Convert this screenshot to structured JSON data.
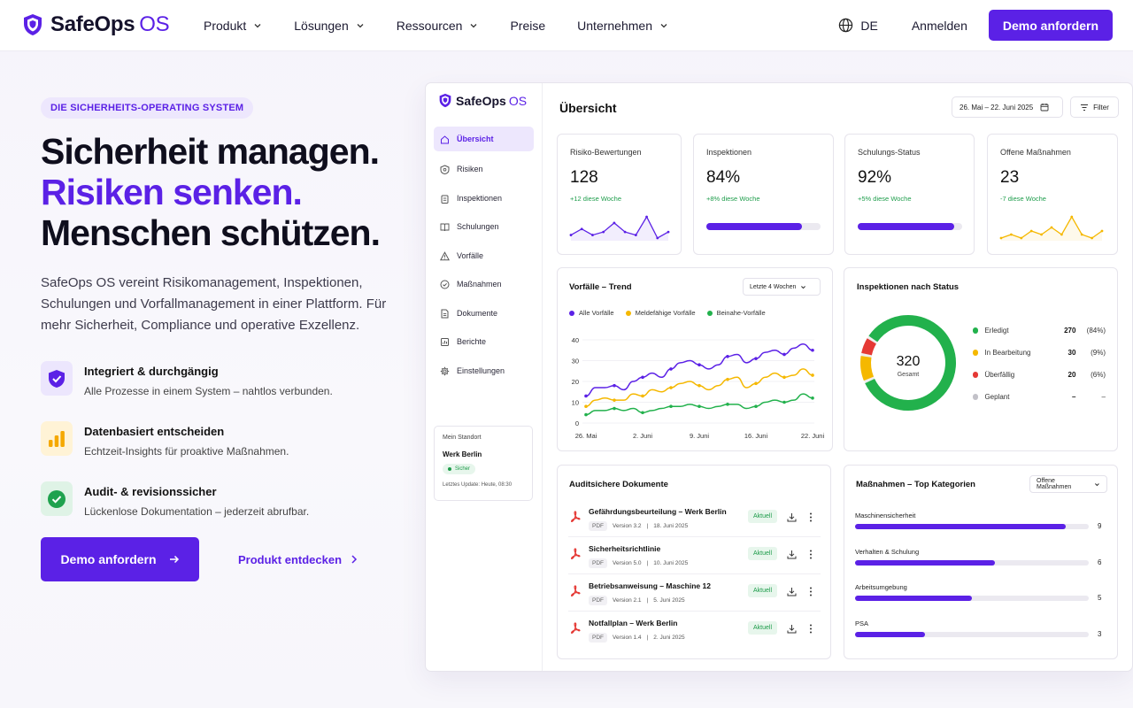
{
  "brand": {
    "name": "SafeOps",
    "suffix": "OS"
  },
  "nav": {
    "items": [
      "Produkt",
      "Lösungen",
      "Ressourcen",
      "Preise",
      "Unternehmen"
    ],
    "lang": "DE",
    "login": "Anmelden",
    "demo": "Demo anfordern"
  },
  "hero": {
    "badge": "DIE SICHERHEITS-OPERATING SYSTEM",
    "line1": "Sicherheit managen.",
    "line2": "Risiken senken.",
    "line3": "Menschen schützen.",
    "lead": "SafeOps OS vereint Risikomanagement, Inspektionen, Schulungen und Vorfallmanagement in einer Plattform. Für mehr Sicherheit, Compliance und operative Exzellenz.",
    "features": [
      {
        "icon": "shield-check-icon",
        "title": "Integriert & durchgängig",
        "desc": "Alle Prozesse in einem System – nahtlos verbunden."
      },
      {
        "icon": "bar-chart-icon",
        "title": "Datenbasiert entscheiden",
        "desc": "Echtzeit-Insights für proaktive Maßnahmen."
      },
      {
        "icon": "check-circle-icon",
        "title": "Audit- & revisionssicher",
        "desc": "Lückenlose Dokumentation – jederzeit abrufbar."
      }
    ],
    "cta_primary": "Demo anfordern",
    "cta_secondary": "Produkt entdecken"
  },
  "dashboard": {
    "brand": {
      "name": "SafeOps",
      "suffix": "OS"
    },
    "sidebar": [
      {
        "label": "Übersicht",
        "icon": "home-icon",
        "active": true
      },
      {
        "label": "Risiken",
        "icon": "risk-icon"
      },
      {
        "label": "Inspektionen",
        "icon": "clipboard-icon"
      },
      {
        "label": "Schulungen",
        "icon": "book-icon"
      },
      {
        "label": "Vorfälle",
        "icon": "warning-icon"
      },
      {
        "label": "Maßnahmen",
        "icon": "check-circle-icon"
      },
      {
        "label": "Dokumente",
        "icon": "document-icon"
      },
      {
        "label": "Berichte",
        "icon": "report-icon"
      },
      {
        "label": "Einstellungen",
        "icon": "gear-icon"
      }
    ],
    "location": {
      "label": "Mein Standort",
      "name": "Werk Berlin",
      "status": "Sicher",
      "updated": "Letztes Update: Heute, 08:30"
    },
    "title": "Übersicht",
    "date_range": "26. Mai – 22. Juni 2025",
    "filter": "Filter",
    "kpis": [
      {
        "label": "Risiko-Bewertungen",
        "value": "128",
        "delta": "+12 diese Woche",
        "spark": [
          5,
          7,
          5,
          6,
          9,
          6,
          5,
          11,
          4,
          6
        ],
        "spark_color": "#5b21e6"
      },
      {
        "label": "Inspektionen",
        "value": "84%",
        "delta": "+8% diese Woche",
        "progress": 0.84
      },
      {
        "label": "Schulungs-Status",
        "value": "92%",
        "delta": "+5% diese Woche",
        "progress": 0.92
      },
      {
        "label": "Offene Maßnahmen",
        "value": "23",
        "delta": "-7 diese Woche",
        "spark": [
          4,
          5,
          4,
          6,
          5,
          7,
          5,
          10,
          5,
          4,
          6
        ],
        "spark_color": "#f5b800"
      }
    ],
    "trend": {
      "title": "Vorfälle – Trend",
      "period": "Letzte 4 Wochen",
      "series_names": [
        "Alle Vorfälle",
        "Meldefähige Vorfälle",
        "Beinahe-Vorfälle"
      ]
    },
    "inspections": {
      "title": "Inspektionen nach Status",
      "total": "320",
      "total_label": "Gesamt",
      "statuses": [
        {
          "name": "Erledigt",
          "count": "270",
          "pct": "(84%)",
          "color": "#22b14c"
        },
        {
          "name": "In Bearbeitung",
          "count": "30",
          "pct": "(9%)",
          "color": "#f5b800"
        },
        {
          "name": "Überfällig",
          "count": "20",
          "pct": "(6%)",
          "color": "#e53935"
        },
        {
          "name": "Geplant",
          "count": "–",
          "pct": "–",
          "color": "#c2c1c8"
        }
      ]
    },
    "documents": {
      "title": "Auditsichere Dokumente",
      "items": [
        {
          "name": "Gefährdungsbeurteilung – Werk Berlin",
          "type": "PDF",
          "version": "Version 3.2",
          "date": "18. Juni 2025",
          "status": "Aktuell"
        },
        {
          "name": "Sicherheitsrichtlinie",
          "type": "PDF",
          "version": "Version 5.0",
          "date": "10. Juni 2025",
          "status": "Aktuell"
        },
        {
          "name": "Betriebsanweisung – Maschine 12",
          "type": "PDF",
          "version": "Version 2.1",
          "date": "5. Juni 2025",
          "status": "Aktuell"
        },
        {
          "name": "Notfallplan – Werk Berlin",
          "type": "PDF",
          "version": "Version 1.4",
          "date": "2. Juni 2025",
          "status": "Aktuell"
        }
      ]
    },
    "categories": {
      "title": "Maßnahmen – Top Kategorien",
      "filter": "Offene Maßnahmen",
      "items": [
        {
          "name": "Maschinensicherheit",
          "value": "9"
        },
        {
          "name": "Verhalten & Schulung",
          "value": "6"
        },
        {
          "name": "Arbeitsumgebung",
          "value": "5"
        },
        {
          "name": "PSA",
          "value": "3"
        }
      ]
    }
  },
  "chart_data": {
    "type": "line",
    "title": "Vorfälle – Trend",
    "x": [
      "26. Mai",
      "",
      "",
      "",
      "",
      "",
      "2. Juni",
      "",
      "",
      "",
      "",
      "",
      "9. Juni",
      "",
      "",
      "",
      "",
      "",
      "16. Juni",
      "",
      "",
      "",
      "",
      "",
      "22. Juni"
    ],
    "xticks": [
      "26. Mai",
      "2. Juni",
      "9. Juni",
      "16. Juni",
      "22. Juni"
    ],
    "ylim": [
      0,
      40
    ],
    "yticks": [
      0,
      10,
      20,
      30,
      40
    ],
    "grid": true,
    "legend": "top",
    "series": [
      {
        "name": "Alle Vorfälle",
        "color": "#5b21e6",
        "values": [
          13,
          17,
          17,
          18,
          16,
          20,
          22,
          24,
          22,
          26,
          29,
          30,
          28,
          26,
          28,
          32,
          33,
          29,
          31,
          34,
          35,
          33,
          36,
          38,
          35
        ]
      },
      {
        "name": "Meldefähige Vorfälle",
        "color": "#f5b800",
        "values": [
          8,
          11,
          12,
          11,
          11,
          14,
          13,
          16,
          15,
          17,
          19,
          20,
          18,
          16,
          18,
          21,
          22,
          17,
          19,
          22,
          24,
          22,
          23,
          26,
          23
        ]
      },
      {
        "name": "Beinahe-Vorfälle",
        "color": "#22b14c",
        "values": [
          4,
          6,
          6,
          7,
          6,
          7,
          5,
          6,
          7,
          8,
          8,
          9,
          8,
          7,
          8,
          9,
          9,
          7,
          8,
          10,
          11,
          10,
          11,
          14,
          12
        ]
      }
    ]
  }
}
